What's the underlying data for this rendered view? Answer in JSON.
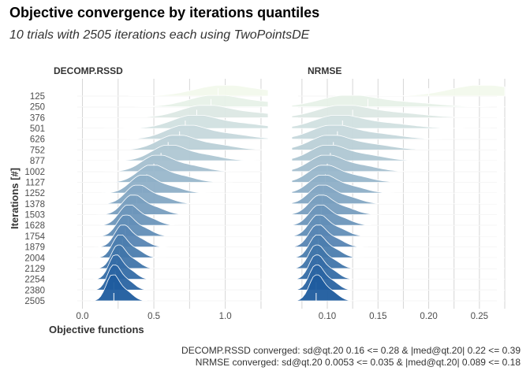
{
  "chart_data": {
    "type": "ridgeline",
    "title": "Objective convergence by iterations quantiles",
    "subtitle": "10 trials with 2505 iterations each using TwoPointsDE",
    "xlabel": "Objective functions",
    "ylabel": "Iterations [#]",
    "grid": true,
    "legend": "none",
    "categories": [
      "125",
      "250",
      "376",
      "501",
      "626",
      "752",
      "877",
      "1002",
      "1127",
      "1252",
      "1378",
      "1503",
      "1628",
      "1754",
      "1879",
      "2004",
      "2129",
      "2254",
      "2380",
      "2505"
    ],
    "fill_scale": [
      "#f2f9ec",
      "#1f5c9e"
    ],
    "facets": [
      {
        "name": "DECOMP.RSSD",
        "xlim": [
          -0.08,
          1.3
        ],
        "xticks": [
          0.0,
          0.5,
          1.0
        ],
        "xtick_labels": [
          "0.0",
          "0.5",
          "1.0"
        ],
        "mode_by_quantile": [
          0.98,
          0.92,
          0.85,
          0.78,
          0.72,
          0.65,
          0.6,
          0.52,
          0.48,
          0.42,
          0.38,
          0.35,
          0.32,
          0.3,
          0.28,
          0.26,
          0.25,
          0.23,
          0.22,
          0.21
        ],
        "median_by_quantile": [
          0.95,
          0.9,
          0.8,
          0.72,
          0.68,
          0.6,
          0.55,
          0.5,
          0.45,
          0.42,
          0.38,
          0.35,
          0.32,
          0.3,
          0.28,
          0.26,
          0.24,
          0.23,
          0.22,
          0.22
        ]
      },
      {
        "name": "NRMSE",
        "xlim": [
          0.065,
          0.275
        ],
        "xticks": [
          0.1,
          0.15,
          0.2,
          0.25
        ],
        "xtick_labels": [
          "0.10",
          "0.15",
          "0.20",
          "0.25"
        ],
        "mode_by_quantile": [
          0.25,
          0.12,
          0.115,
          0.11,
          0.105,
          0.102,
          0.1,
          0.098,
          0.096,
          0.095,
          0.094,
          0.093,
          0.092,
          0.091,
          0.09,
          0.09,
          0.089,
          0.089,
          0.089,
          0.089
        ],
        "median_by_quantile": [
          0.2,
          0.14,
          0.125,
          0.115,
          0.11,
          0.106,
          0.103,
          0.1,
          0.098,
          0.096,
          0.095,
          0.094,
          0.093,
          0.092,
          0.091,
          0.09,
          0.09,
          0.089,
          0.089,
          0.089
        ]
      }
    ],
    "caption": [
      "DECOMP.RSSD converged: sd@qt.20 0.16 <= 0.28 & |med@qt.20| 0.22 <= 0.39",
      "NRMSE converged: sd@qt.20 0.0053 <= 0.035 & |med@qt.20| 0.089 <= 0.18"
    ]
  }
}
